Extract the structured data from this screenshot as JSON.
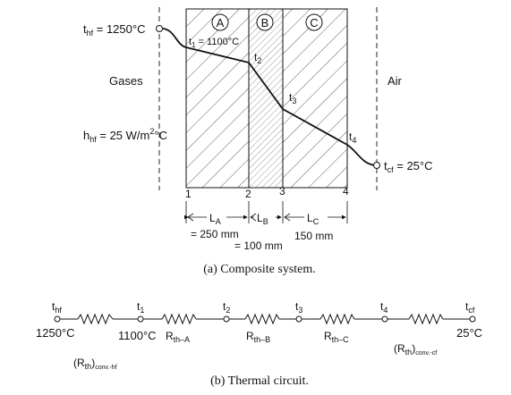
{
  "composite": {
    "left_fluid": {
      "temp_label": "t",
      "temp_sub": "hf",
      "temp_value": " = 1250°C",
      "name": "Gases",
      "coeff_label": "h",
      "coeff_sub": "hf",
      "coeff_value": " = 25 W/m",
      "coeff_sup": "2",
      "coeff_unit": "°C"
    },
    "right_fluid": {
      "temp_label": "t",
      "temp_sub": "cf",
      "temp_value": " = 25°C",
      "name": "Air"
    },
    "layers": [
      {
        "id": "A",
        "length_label": "L",
        "length_sub": "A",
        "length_value": "= 250 mm"
      },
      {
        "id": "B",
        "length_label": "L",
        "length_sub": "B",
        "length_value": "= 100 mm"
      },
      {
        "id": "C",
        "length_label": "L",
        "length_sub": "C",
        "length_value": "150 mm"
      }
    ],
    "interface_labels": [
      "1",
      "2",
      "3",
      "4"
    ],
    "temps": [
      {
        "label": "t",
        "sub": "1",
        "value": " = 1100°C"
      },
      {
        "label": "t",
        "sub": "2"
      },
      {
        "label": "t",
        "sub": "3"
      },
      {
        "label": "t",
        "sub": "4"
      }
    ],
    "caption": "(a) Composite system."
  },
  "circuit": {
    "nodes": [
      {
        "label": "t",
        "sub": "hf",
        "value": "1250°C"
      },
      {
        "label": "t",
        "sub": "1",
        "value": "1100°C"
      },
      {
        "label": "t",
        "sub": "2"
      },
      {
        "label": "t",
        "sub": "3"
      },
      {
        "label": "t",
        "sub": "4"
      },
      {
        "label": "t",
        "sub": "cf",
        "value": "25°C"
      }
    ],
    "resistances": [
      {
        "label": "(R",
        "sub": "th",
        "tail": ")",
        "sub2": "conv.-hf"
      },
      {
        "label": "R",
        "sub": "th–A"
      },
      {
        "label": "R",
        "sub": "th–B"
      },
      {
        "label": "R",
        "sub": "th–C"
      },
      {
        "label": "(R",
        "sub": "th",
        "tail": ")",
        "sub2": "conv.-cf"
      }
    ],
    "caption": "(b) Thermal circuit."
  }
}
